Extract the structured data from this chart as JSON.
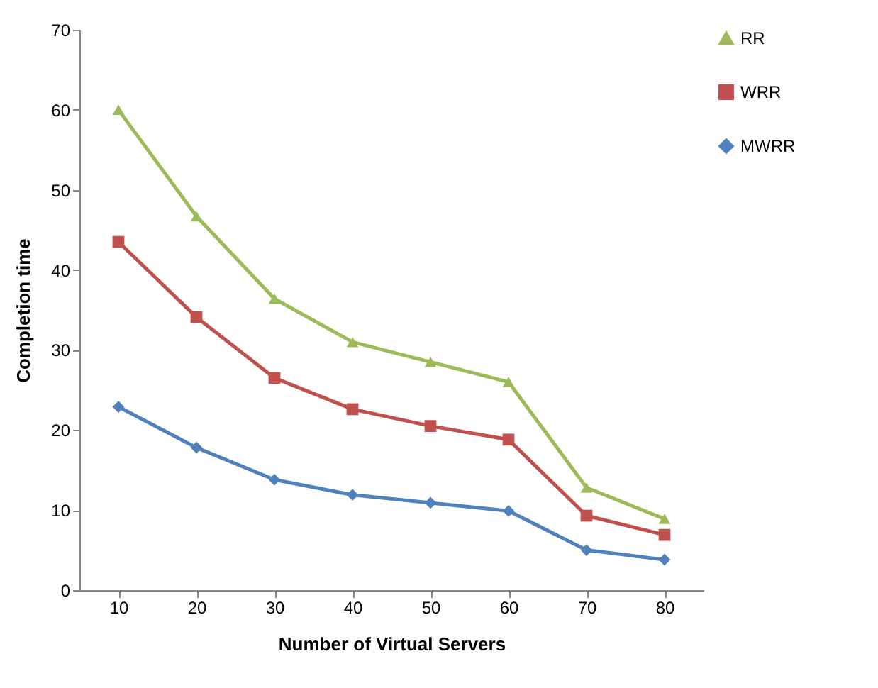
{
  "chart_data": {
    "type": "line",
    "xlabel": "Number of Virtual Servers",
    "ylabel": "Completion time",
    "categories": [
      "10",
      "20",
      "30",
      "40",
      "50",
      "60",
      "70",
      "80"
    ],
    "series": [
      {
        "name": "RR",
        "color": "#9bbb59",
        "marker": "triangle",
        "values": [
          60,
          46.7,
          36.4,
          31,
          28.5,
          26,
          12.8,
          8.9
        ]
      },
      {
        "name": "WRR",
        "color": "#c0504d",
        "marker": "square",
        "values": [
          43.5,
          34.1,
          26.5,
          22.6,
          20.5,
          18.8,
          9.3,
          6.9
        ]
      },
      {
        "name": "MWRR",
        "color": "#4f81bd",
        "marker": "diamond",
        "values": [
          22.9,
          17.8,
          13.8,
          11.9,
          10.9,
          9.9,
          5,
          3.8
        ]
      }
    ],
    "ylim": [
      0,
      70
    ],
    "yticks": [
      0,
      10,
      20,
      30,
      40,
      50,
      60,
      70
    ],
    "grid": false,
    "legend": "right",
    "line_style": "solid"
  }
}
